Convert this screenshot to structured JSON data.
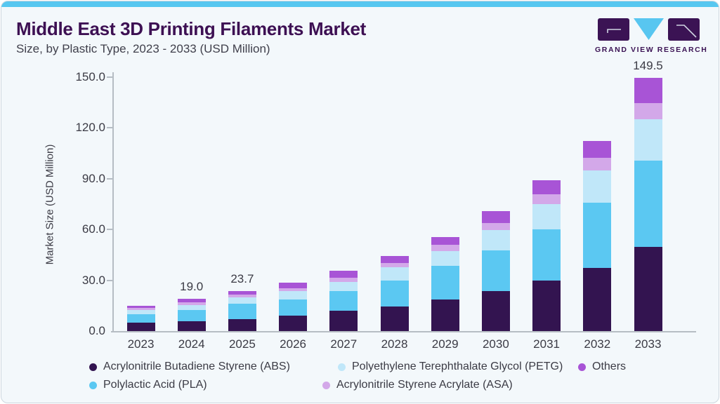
{
  "header": {
    "title": "Middle East 3D Printing Filaments Market",
    "subtitle": "Size, by Plastic Type, 2023 - 2033 (USD Million)"
  },
  "logo": {
    "wordmark": "GRAND VIEW RESEARCH"
  },
  "chart_data": {
    "type": "bar",
    "stacked": true,
    "title": "Middle East 3D Printing Filaments Market Size, by Plastic Type, 2023 - 2033 (USD Million)",
    "ylabel": "Market Size (USD Million)",
    "ylim": [
      0,
      150
    ],
    "ytick_labels": [
      "0.0",
      "30.0",
      "60.0",
      "90.0",
      "120.0",
      "150.0"
    ],
    "grid": false,
    "legend_position": "bottom",
    "categories": [
      "2023",
      "2024",
      "2025",
      "2026",
      "2027",
      "2028",
      "2029",
      "2030",
      "2031",
      "2032",
      "2033"
    ],
    "series": [
      {
        "name": "Acrylonitrile Butadiene Styrene (ABS)",
        "color": "#331450",
        "values": [
          5.0,
          6.0,
          7.2,
          9.1,
          11.9,
          14.7,
          18.8,
          23.5,
          29.7,
          37.2,
          49.7
        ]
      },
      {
        "name": "Polylactic Acid (PLA)",
        "color": "#5bc8f2",
        "values": [
          5.1,
          6.3,
          8.8,
          9.6,
          11.9,
          15.0,
          19.8,
          24.1,
          30.5,
          38.8,
          50.8
        ]
      },
      {
        "name": "Polyethylene Terephthalate Glycol (PETG)",
        "color": "#c0e7f9",
        "values": [
          2.2,
          3.0,
          3.8,
          4.9,
          5.2,
          8.2,
          8.8,
          12.0,
          15.0,
          19.1,
          24.8
        ]
      },
      {
        "name": "Acrylonitrile Styrene Acrylate (ASA)",
        "color": "#d3a8e9",
        "values": [
          1.4,
          1.5,
          1.6,
          1.6,
          2.3,
          2.3,
          3.4,
          4.4,
          5.6,
          7.1,
          9.2
        ]
      },
      {
        "name": "Others",
        "color": "#a854d6",
        "values": [
          1.4,
          2.2,
          2.3,
          3.3,
          4.4,
          4.1,
          4.7,
          6.8,
          8.2,
          10.2,
          15.0
        ]
      }
    ],
    "totals": [
      15.1,
      19.0,
      23.7,
      28.5,
      35.7,
      44.3,
      55.5,
      70.8,
      89.0,
      112.4,
      149.5
    ],
    "bar_value_labels": [
      "",
      "19.0",
      "23.7",
      "",
      "",
      "",
      "",
      "",
      "",
      "",
      "149.5"
    ],
    "legend_rows": [
      [
        0,
        2,
        4
      ],
      [
        1,
        3
      ]
    ]
  },
  "colors": {
    "accent_bar": "#57c7f0",
    "title": "#3d1053",
    "text": "#3b3b45",
    "axis": "#b6bdc4",
    "card_bg": "#f3f8fb",
    "logo_purple": "#3b1354",
    "logo_blue": "#58c6f0"
  }
}
